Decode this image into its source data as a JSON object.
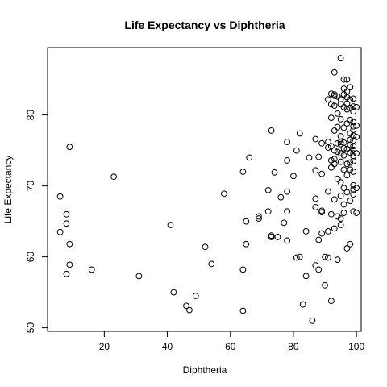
{
  "chart_data": {
    "type": "scatter",
    "title": "Life Expectancy vs  Diphtheria",
    "xlabel": "Diphtheria",
    "ylabel": "Life Expectancy",
    "xlim": [
      2,
      101.5
    ],
    "ylim": [
      49.5,
      89.5
    ],
    "x_ticks": [
      20,
      40,
      60,
      80,
      100
    ],
    "y_ticks": [
      50,
      60,
      70,
      80
    ],
    "grid": false,
    "marker": "open-circle",
    "points": [
      [
        6,
        68.5
      ],
      [
        6,
        63.5
      ],
      [
        8,
        66
      ],
      [
        8,
        64.7
      ],
      [
        8,
        57.6
      ],
      [
        9,
        75.5
      ],
      [
        9,
        61.8
      ],
      [
        9,
        58.9
      ],
      [
        16,
        58.2
      ],
      [
        23,
        71.3
      ],
      [
        31,
        57.3
      ],
      [
        41,
        64.5
      ],
      [
        42,
        55
      ],
      [
        46,
        53.1
      ],
      [
        47,
        52.5
      ],
      [
        49,
        54.5
      ],
      [
        52,
        61.4
      ],
      [
        54,
        59
      ],
      [
        58,
        68.9
      ],
      [
        64,
        72
      ],
      [
        64,
        58.2
      ],
      [
        64,
        52.4
      ],
      [
        65,
        65
      ],
      [
        65,
        61.8
      ],
      [
        66,
        74
      ],
      [
        69,
        65.7
      ],
      [
        69,
        65.4
      ],
      [
        72,
        69.4
      ],
      [
        72,
        66.4
      ],
      [
        73,
        77.8
      ],
      [
        73,
        63
      ],
      [
        73,
        62.8
      ],
      [
        74,
        71.9
      ],
      [
        75,
        62.8
      ],
      [
        76,
        68.4
      ],
      [
        77,
        64.8
      ],
      [
        78,
        76.2
      ],
      [
        78,
        73.6
      ],
      [
        78,
        69.2
      ],
      [
        78,
        66.4
      ],
      [
        78,
        62.3
      ],
      [
        80,
        71.4
      ],
      [
        81,
        75
      ],
      [
        81,
        59.9
      ],
      [
        82,
        77.4
      ],
      [
        82,
        60
      ],
      [
        83,
        53.3
      ],
      [
        84,
        63.6
      ],
      [
        84,
        57.3
      ],
      [
        85,
        74
      ],
      [
        86,
        51
      ],
      [
        87,
        76.6
      ],
      [
        87,
        72.2
      ],
      [
        87,
        68.2
      ],
      [
        87,
        67
      ],
      [
        87,
        58.8
      ],
      [
        88,
        74.1
      ],
      [
        88,
        62.4
      ],
      [
        88,
        58.2
      ],
      [
        89,
        76
      ],
      [
        89,
        71.7
      ],
      [
        89,
        66.5
      ],
      [
        89,
        66.3
      ],
      [
        89,
        63.3
      ],
      [
        90,
        60
      ],
      [
        90,
        56
      ],
      [
        91,
        82.2
      ],
      [
        91,
        76.2
      ],
      [
        91,
        75.4
      ],
      [
        91,
        69.2
      ],
      [
        91,
        63.6
      ],
      [
        91,
        59.9
      ],
      [
        92,
        83
      ],
      [
        92,
        81.5
      ],
      [
        92,
        79.6
      ],
      [
        92,
        75.6
      ],
      [
        92,
        73.6
      ],
      [
        92,
        72.6
      ],
      [
        92,
        66
      ],
      [
        92,
        53.8
      ],
      [
        93,
        86
      ],
      [
        93,
        82.9
      ],
      [
        93,
        82.7
      ],
      [
        93,
        81.3
      ],
      [
        93,
        77.8
      ],
      [
        93,
        75
      ],
      [
        93,
        73.8
      ],
      [
        93,
        73.1
      ],
      [
        93,
        68.1
      ],
      [
        93,
        64
      ],
      [
        94,
        82.6
      ],
      [
        94,
        80.2
      ],
      [
        94,
        78.3
      ],
      [
        94,
        76
      ],
      [
        94,
        74.8
      ],
      [
        94,
        71
      ],
      [
        94,
        65.7
      ],
      [
        94,
        59.6
      ],
      [
        95,
        88
      ],
      [
        95,
        82.2
      ],
      [
        95,
        81.5
      ],
      [
        95,
        79.4
      ],
      [
        95,
        77
      ],
      [
        95,
        76.2
      ],
      [
        95,
        75.9
      ],
      [
        95,
        74.6
      ],
      [
        95,
        73.4
      ],
      [
        95,
        70.5
      ],
      [
        95,
        68.6
      ],
      [
        95,
        65.4
      ],
      [
        95,
        64.5
      ],
      [
        96,
        85
      ],
      [
        96,
        83.7
      ],
      [
        96,
        82.9
      ],
      [
        96,
        81.1
      ],
      [
        96,
        78.2
      ],
      [
        96,
        76.1
      ],
      [
        96,
        75.3
      ],
      [
        96,
        74.3
      ],
      [
        96,
        72.3
      ],
      [
        96,
        69.7
      ],
      [
        96,
        67.4
      ],
      [
        96,
        66.2
      ],
      [
        97,
        85
      ],
      [
        97,
        83.3
      ],
      [
        97,
        82.5
      ],
      [
        97,
        81.6
      ],
      [
        97,
        80.8
      ],
      [
        97,
        78.8
      ],
      [
        97,
        75.2
      ],
      [
        97,
        73.1
      ],
      [
        97,
        71.5
      ],
      [
        97,
        69.1
      ],
      [
        97,
        61.2
      ],
      [
        98,
        83.9
      ],
      [
        98,
        82.2
      ],
      [
        98,
        81
      ],
      [
        98,
        79.3
      ],
      [
        98,
        77.4
      ],
      [
        98,
        76.5
      ],
      [
        98,
        75.8
      ],
      [
        98,
        74.7
      ],
      [
        98,
        73.3
      ],
      [
        98,
        72.3
      ],
      [
        98,
        67.9
      ],
      [
        98,
        61.8
      ],
      [
        99,
        82.3
      ],
      [
        99,
        81.2
      ],
      [
        99,
        80.5
      ],
      [
        99,
        79
      ],
      [
        99,
        78.4
      ],
      [
        99,
        77.9
      ],
      [
        99,
        77.1
      ],
      [
        99,
        76.4
      ],
      [
        99,
        75.6
      ],
      [
        99,
        75.1
      ],
      [
        99,
        74.6
      ],
      [
        99,
        74.2
      ],
      [
        99,
        73.5
      ],
      [
        99,
        72
      ],
      [
        99,
        70.1
      ],
      [
        99,
        69.5
      ],
      [
        99,
        68.8
      ],
      [
        99,
        66.4
      ],
      [
        100,
        81.1
      ],
      [
        100,
        78.5
      ],
      [
        100,
        76.9
      ],
      [
        100,
        74.6
      ],
      [
        100,
        69.7
      ],
      [
        100,
        66.2
      ]
    ]
  }
}
